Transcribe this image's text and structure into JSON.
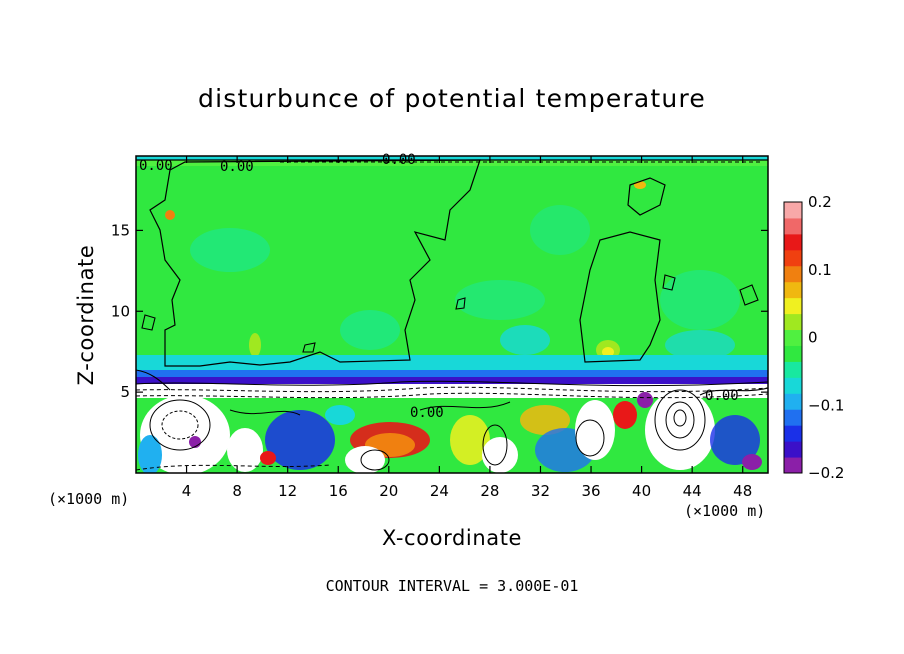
{
  "chart_data": {
    "type": "heatmap",
    "title": "disturbunce of potential temperature",
    "xlabel": "X-coordinate",
    "ylabel": "Z-coordinate",
    "x_unit": "(×1000 m)",
    "xlim": [
      0,
      50
    ],
    "ylim": [
      0,
      19.6
    ],
    "x_ticks": [
      4,
      8,
      12,
      16,
      20,
      24,
      28,
      32,
      36,
      40,
      44,
      48
    ],
    "y_ticks": [
      5,
      10,
      15
    ],
    "colorbar": {
      "min": -0.2,
      "max": 0.2,
      "ticks": [
        0.2,
        0.1,
        0,
        -0.1,
        -0.2
      ],
      "tick_labels": [
        "0.2",
        "0.1",
        "0",
        "−0.1",
        "−0.2"
      ],
      "colors": [
        "#8b1fa8",
        "#3b10c8",
        "#1a30e8",
        "#2070f0",
        "#20b0f0",
        "#18d8d8",
        "#18e8a0",
        "#30e840",
        "#50f040",
        "#a0e820",
        "#f0f020",
        "#f0b810",
        "#f08010",
        "#f04010",
        "#e81818",
        "#f06868",
        "#f8a8a8"
      ]
    },
    "contour_labels": [
      "0.00"
    ],
    "contour_interval_text": "CONTOUR INTERVAL = 3.000E-01"
  }
}
